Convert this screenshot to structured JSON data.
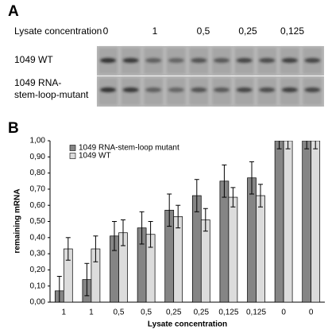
{
  "panel_a": {
    "label": "A",
    "axis_label": "Lysate concentration",
    "concentrations": [
      "0",
      "1",
      "0,5",
      "0,25",
      "0,125"
    ],
    "rows": [
      [
        "1049 WT"
      ],
      [
        "1049 RNA-",
        "stem-loop-mutant"
      ]
    ]
  },
  "chart_data": {
    "type": "bar",
    "panel_label": "B",
    "x_label": "Lysate concentration",
    "y_label": "remaining mRNA",
    "categories": [
      "1",
      "1",
      "0,5",
      "0,5",
      "0,25",
      "0,25",
      "0,125",
      "0,125",
      "0",
      "0"
    ],
    "series": [
      {
        "name": "1049 RNA-stem-loop mutant",
        "color": "#858585",
        "values": [
          0.07,
          0.14,
          0.41,
          0.46,
          0.57,
          0.66,
          0.75,
          0.77,
          1.0,
          1.0
        ],
        "errors": [
          0.09,
          0.1,
          0.09,
          0.1,
          0.1,
          0.1,
          0.1,
          0.1,
          0.05,
          0.05
        ]
      },
      {
        "name": "1049 WT",
        "color": "#dcdcdc",
        "values": [
          0.33,
          0.33,
          0.43,
          0.42,
          0.53,
          0.51,
          0.65,
          0.66,
          1.0,
          1.0
        ],
        "errors": [
          0.07,
          0.08,
          0.08,
          0.08,
          0.07,
          0.07,
          0.06,
          0.07,
          0.05,
          0.05
        ]
      }
    ],
    "ylim": [
      0,
      1
    ],
    "yticks": [
      {
        "value": 0,
        "label": "0,00"
      },
      {
        "value": 0.1,
        "label": "0,10"
      },
      {
        "value": 0.2,
        "label": "0,20"
      },
      {
        "value": 0.3,
        "label": "0,30"
      },
      {
        "value": 0.4,
        "label": "0,40"
      },
      {
        "value": 0.5,
        "label": "0,50"
      },
      {
        "value": 0.6,
        "label": "0,60"
      },
      {
        "value": 0.7,
        "label": "0,70"
      },
      {
        "value": 0.8,
        "label": "0,80"
      },
      {
        "value": 0.9,
        "label": "0,90"
      },
      {
        "value": 1,
        "label": "1,00"
      }
    ],
    "legend": "upper left"
  }
}
